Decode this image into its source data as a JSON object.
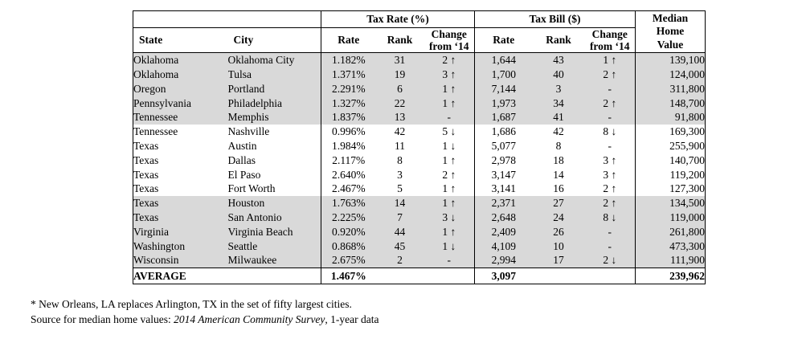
{
  "table": {
    "header": {
      "tax_rate_group": "Tax Rate (%)",
      "tax_bill_group": "Tax Bill ($)",
      "state": "State",
      "city": "City",
      "rate": "Rate",
      "rank": "Rank",
      "change_line1": "Change",
      "change_line2": "from ‘14",
      "median_line1": "Median",
      "median_line2": "Home",
      "median_line3": "Value"
    },
    "rows": [
      {
        "state": "Oklahoma",
        "city": "Oklahoma City",
        "tax_rate": {
          "rate": "1.182%",
          "rank": "31",
          "change": "2 ↑"
        },
        "tax_bill": {
          "rate": "1,644",
          "rank": "43",
          "change": "1 ↑"
        },
        "median_home_value": "139,100",
        "shaded": true
      },
      {
        "state": "Oklahoma",
        "city": "Tulsa",
        "tax_rate": {
          "rate": "1.371%",
          "rank": "19",
          "change": "3 ↑"
        },
        "tax_bill": {
          "rate": "1,700",
          "rank": "40",
          "change": "2 ↑"
        },
        "median_home_value": "124,000",
        "shaded": true
      },
      {
        "state": "Oregon",
        "city": "Portland",
        "tax_rate": {
          "rate": "2.291%",
          "rank": "6",
          "change": "1 ↑"
        },
        "tax_bill": {
          "rate": "7,144",
          "rank": "3",
          "change": "-"
        },
        "median_home_value": "311,800",
        "shaded": true
      },
      {
        "state": "Pennsylvania",
        "city": "Philadelphia",
        "tax_rate": {
          "rate": "1.327%",
          "rank": "22",
          "change": "1 ↑"
        },
        "tax_bill": {
          "rate": "1,973",
          "rank": "34",
          "change": "2 ↑"
        },
        "median_home_value": "148,700",
        "shaded": true
      },
      {
        "state": "Tennessee",
        "city": "Memphis",
        "tax_rate": {
          "rate": "1.837%",
          "rank": "13",
          "change": "-"
        },
        "tax_bill": {
          "rate": "1,687",
          "rank": "41",
          "change": "-"
        },
        "median_home_value": "91,800",
        "shaded": true
      },
      {
        "state": "Tennessee",
        "city": "Nashville",
        "tax_rate": {
          "rate": "0.996%",
          "rank": "42",
          "change": "5 ↓"
        },
        "tax_bill": {
          "rate": "1,686",
          "rank": "42",
          "change": "8 ↓"
        },
        "median_home_value": "169,300",
        "shaded": false
      },
      {
        "state": "Texas",
        "city": "Austin",
        "tax_rate": {
          "rate": "1.984%",
          "rank": "11",
          "change": "1 ↓"
        },
        "tax_bill": {
          "rate": "5,077",
          "rank": "8",
          "change": "-"
        },
        "median_home_value": "255,900",
        "shaded": false
      },
      {
        "state": "Texas",
        "city": "Dallas",
        "tax_rate": {
          "rate": "2.117%",
          "rank": "8",
          "change": "1 ↑"
        },
        "tax_bill": {
          "rate": "2,978",
          "rank": "18",
          "change": "3 ↑"
        },
        "median_home_value": "140,700",
        "shaded": false
      },
      {
        "state": "Texas",
        "city": "El Paso",
        "tax_rate": {
          "rate": "2.640%",
          "rank": "3",
          "change": "2 ↑"
        },
        "tax_bill": {
          "rate": "3,147",
          "rank": "14",
          "change": "3 ↑"
        },
        "median_home_value": "119,200",
        "shaded": false
      },
      {
        "state": "Texas",
        "city": "Fort Worth",
        "tax_rate": {
          "rate": "2.467%",
          "rank": "5",
          "change": "1 ↑"
        },
        "tax_bill": {
          "rate": "3,141",
          "rank": "16",
          "change": "2 ↑"
        },
        "median_home_value": "127,300",
        "shaded": false
      },
      {
        "state": "Texas",
        "city": "Houston",
        "tax_rate": {
          "rate": "1.763%",
          "rank": "14",
          "change": "1 ↑"
        },
        "tax_bill": {
          "rate": "2,371",
          "rank": "27",
          "change": "2 ↑"
        },
        "median_home_value": "134,500",
        "shaded": true
      },
      {
        "state": "Texas",
        "city": "San Antonio",
        "tax_rate": {
          "rate": "2.225%",
          "rank": "7",
          "change": "3 ↓"
        },
        "tax_bill": {
          "rate": "2,648",
          "rank": "24",
          "change": "8 ↓"
        },
        "median_home_value": "119,000",
        "shaded": true
      },
      {
        "state": "Virginia",
        "city": "Virginia Beach",
        "tax_rate": {
          "rate": "0.920%",
          "rank": "44",
          "change": "1 ↑"
        },
        "tax_bill": {
          "rate": "2,409",
          "rank": "26",
          "change": "-"
        },
        "median_home_value": "261,800",
        "shaded": true
      },
      {
        "state": "Washington",
        "city": "Seattle",
        "tax_rate": {
          "rate": "0.868%",
          "rank": "45",
          "change": "1 ↓"
        },
        "tax_bill": {
          "rate": "4,109",
          "rank": "10",
          "change": "-"
        },
        "median_home_value": "473,300",
        "shaded": true
      },
      {
        "state": "Wisconsin",
        "city": "Milwaukee",
        "tax_rate": {
          "rate": "2.675%",
          "rank": "2",
          "change": "-"
        },
        "tax_bill": {
          "rate": "2,994",
          "rank": "17",
          "change": "2 ↓"
        },
        "median_home_value": "111,900",
        "shaded": true
      }
    ],
    "average": {
      "label": "AVERAGE",
      "tax_rate": "1.467%",
      "tax_bill": "3,097",
      "median_home_value": "239,962"
    }
  },
  "footnotes": {
    "line1": "* New Orleans, LA replaces Arlington, TX in the set of fifty largest cities.",
    "line2_prefix": "Source for median home values: ",
    "line2_italic": "2014 American Community Survey",
    "line2_suffix": ", 1-year data"
  },
  "colors": {
    "row_shade": "#d9d9d9",
    "border": "#000000",
    "text": "#000000",
    "background": "#ffffff"
  }
}
